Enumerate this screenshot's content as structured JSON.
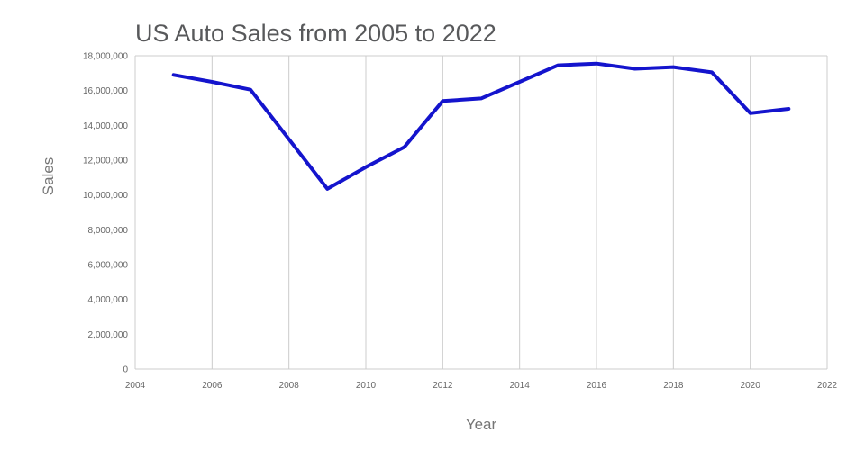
{
  "chart": {
    "title": "US Auto Sales from 2005 to 2022",
    "xlabel": "Year",
    "ylabel": "Sales"
  },
  "chart_data": {
    "type": "line",
    "title": "US Auto Sales from 2005 to 2022",
    "xlabel": "Year",
    "ylabel": "Sales",
    "x": [
      2005,
      2006,
      2007,
      2008,
      2009,
      2010,
      2011,
      2012,
      2013,
      2014,
      2015,
      2016,
      2017,
      2018,
      2019,
      2020,
      2021
    ],
    "values": [
      16900000,
      16500000,
      16050000,
      13200000,
      10350000,
      11600000,
      12750000,
      15400000,
      15550000,
      16500000,
      17450000,
      17550000,
      17250000,
      17350000,
      17050000,
      14700000,
      14950000
    ],
    "xlim": [
      2004,
      2022
    ],
    "ylim": [
      0,
      18000000
    ],
    "x_ticks": [
      "2004",
      "2006",
      "2008",
      "2010",
      "2012",
      "2014",
      "2016",
      "2018",
      "2020",
      "2022"
    ],
    "y_ticks": [
      "0",
      "2,000,000",
      "4,000,000",
      "6,000,000",
      "8,000,000",
      "10,000,000",
      "12,000,000",
      "14,000,000",
      "16,000,000",
      "18,000,000"
    ],
    "grid": "vertical-only",
    "legend": "none",
    "line_color": "#1414cd",
    "grid_color": "#cccccc",
    "tick_label_color": "#666666",
    "title_color": "#58595b",
    "axis_title_color": "#757575"
  }
}
